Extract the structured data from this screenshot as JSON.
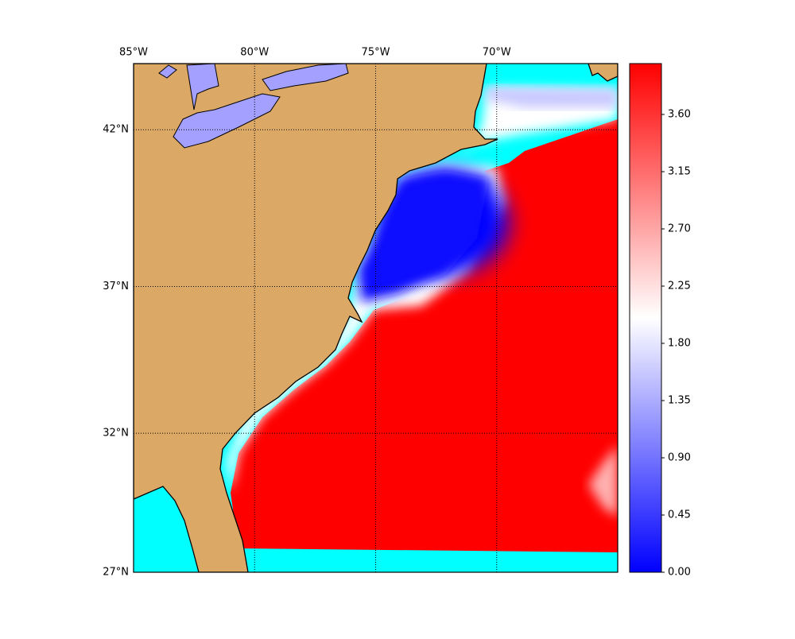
{
  "map": {
    "xlim": [
      -85,
      -65
    ],
    "ylim": [
      27,
      44
    ],
    "xticks": [
      {
        "value": -85,
        "label": "85°W"
      },
      {
        "value": -80,
        "label": "80°W"
      },
      {
        "value": -75,
        "label": "75°W"
      },
      {
        "value": -70,
        "label": "70°W"
      }
    ],
    "yticks": [
      {
        "value": 42,
        "label": "42°N"
      },
      {
        "value": 37,
        "label": "37°N"
      },
      {
        "value": 32,
        "label": "32°N"
      },
      {
        "value": 27,
        "label": "27°N"
      }
    ],
    "grid": true,
    "colorbar": {
      "colors": [
        "#0000ff",
        "#ffffff",
        "#ff0000"
      ],
      "lim": [
        0,
        4.0
      ],
      "ticks": [
        {
          "value": 0,
          "label": "0.00"
        },
        {
          "value": 0.45,
          "label": "0.45"
        },
        {
          "value": 0.9,
          "label": "0.90"
        },
        {
          "value": 1.35,
          "label": "1.35"
        },
        {
          "value": 1.8,
          "label": "1.80"
        },
        {
          "value": 2.25,
          "label": "2.25"
        },
        {
          "value": 2.7,
          "label": "2.70"
        },
        {
          "value": 3.15,
          "label": "3.15"
        },
        {
          "value": 3.6,
          "label": "3.60"
        }
      ]
    }
  }
}
